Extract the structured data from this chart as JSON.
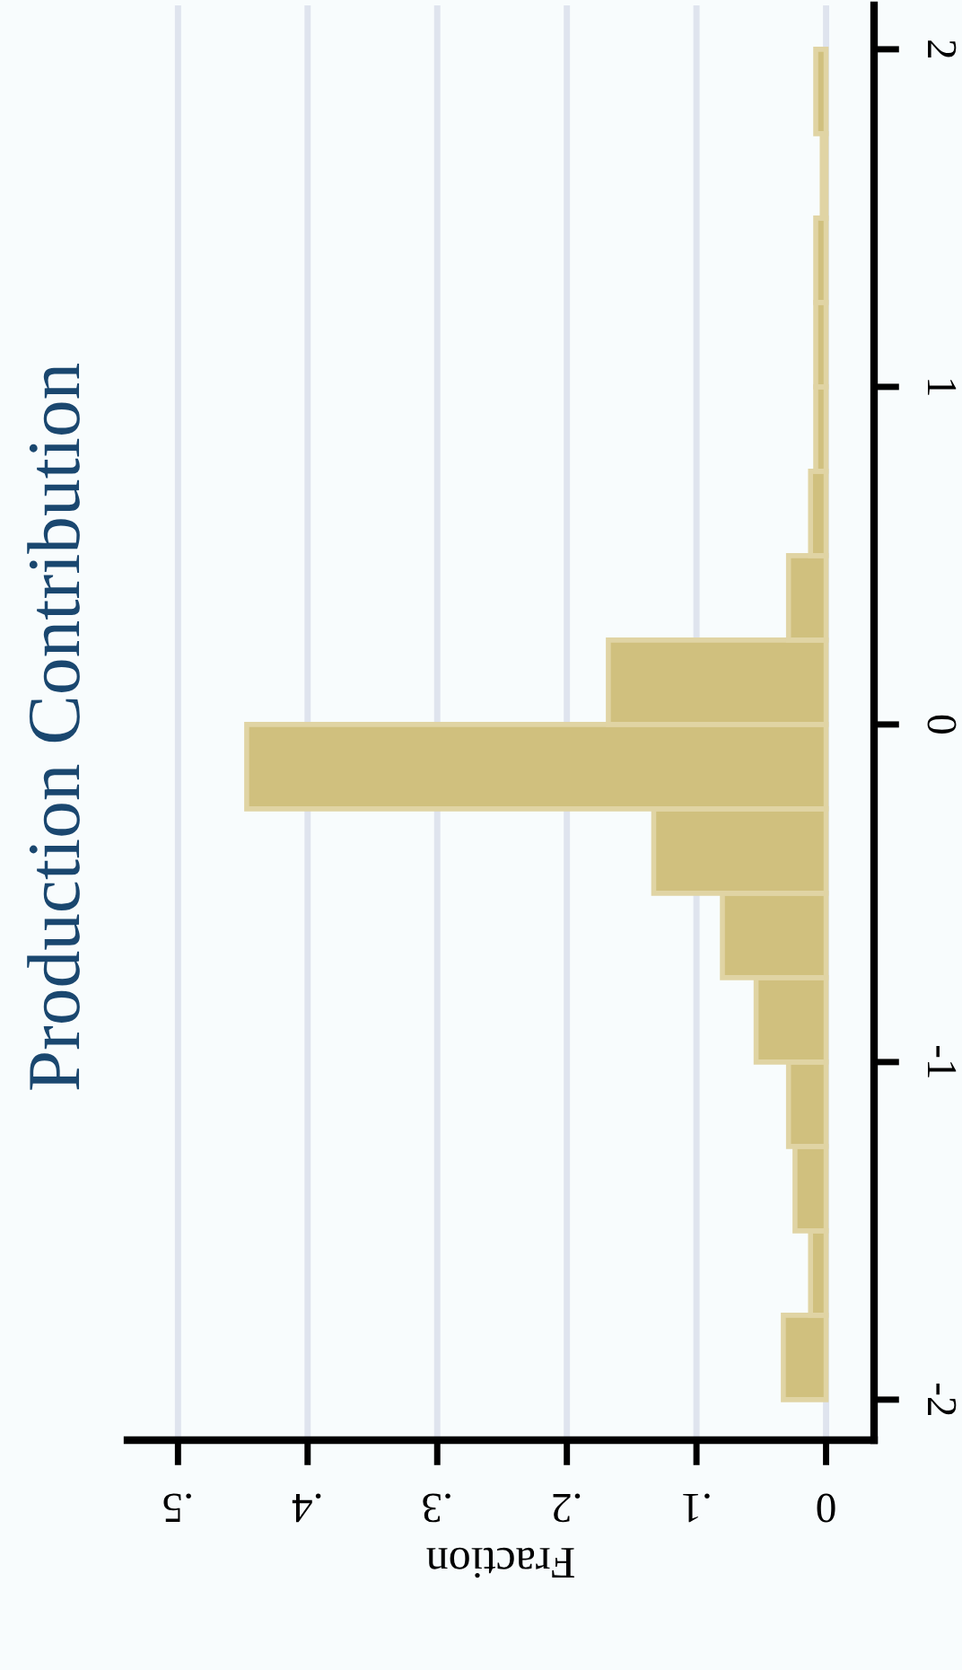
{
  "chart_data": {
    "type": "histogram",
    "orientation": "horizontal",
    "title": "Production Contribution",
    "xlabel": "Fraction",
    "bins": [
      -2,
      -1.75,
      -1.5,
      -1.25,
      -1,
      -0.75,
      -0.5,
      -0.25,
      0,
      0.25,
      0.5,
      0.75,
      1,
      1.25,
      1.5,
      1.75,
      2
    ],
    "values": [
      0.033,
      0.012,
      0.024,
      0.029,
      0.054,
      0.08,
      0.133,
      0.447,
      0.168,
      0.029,
      0.012,
      0.008,
      0.008,
      0.008,
      0.003,
      0.008
    ],
    "color": "#d0c07e",
    "xlim": [
      0.539,
      -0.037
    ],
    "xticks": [
      {
        "value": 0.5,
        "label": ".5"
      },
      {
        "value": 0.4,
        "label": ".4"
      },
      {
        "value": 0.3,
        "label": ".3"
      },
      {
        "value": 0.2,
        "label": ".2"
      },
      {
        "value": 0.1,
        "label": ".1"
      },
      0
    ],
    "ylim": [
      -2.12,
      2.13
    ],
    "yticks": [
      -2,
      -1,
      0,
      1,
      2
    ],
    "grid": "x"
  }
}
